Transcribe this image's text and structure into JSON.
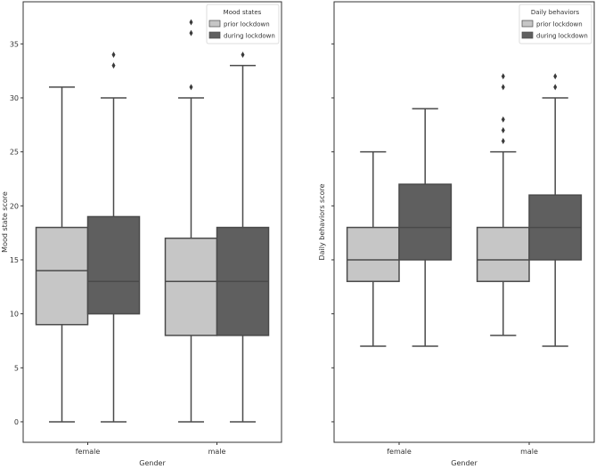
{
  "colors": {
    "prior": "#c6c6c6",
    "during": "#5f5f5f",
    "line": "#4a4a4a"
  },
  "chart_data": [
    {
      "type": "box",
      "title": "",
      "xlabel": "Gender",
      "ylabel": "Mood state score",
      "ylim": [
        -1.9,
        38.9
      ],
      "yticks": [
        0,
        5,
        10,
        15,
        20,
        25,
        30,
        35
      ],
      "show_ytick_labels": true,
      "categories": [
        "female",
        "male"
      ],
      "legend": {
        "title": "Mood states",
        "placement": "top-right",
        "entries": [
          "prior lockdown",
          "during lockdown"
        ]
      },
      "series": [
        {
          "name": "prior lockdown",
          "boxes": [
            {
              "whislo": 0,
              "q1": 9,
              "med": 14,
              "q3": 18,
              "whishi": 31,
              "fliers": []
            },
            {
              "whislo": 0,
              "q1": 8,
              "med": 13,
              "q3": 17,
              "whishi": 30,
              "fliers": [
                31,
                36,
                37
              ]
            }
          ]
        },
        {
          "name": "during lockdown",
          "boxes": [
            {
              "whislo": 0,
              "q1": 10,
              "med": 13,
              "q3": 19,
              "whishi": 30,
              "fliers": [
                33,
                34
              ]
            },
            {
              "whislo": 0,
              "q1": 8,
              "med": 13,
              "q3": 18,
              "whishi": 33,
              "fliers": [
                34
              ]
            }
          ]
        }
      ]
    },
    {
      "type": "box",
      "title": "",
      "xlabel": "Gender",
      "ylabel": "Daily behaviors score",
      "ylim": [
        -1.9,
        38.9
      ],
      "yticks": [
        0,
        5,
        10,
        15,
        20,
        25,
        30,
        35
      ],
      "show_ytick_labels": false,
      "categories": [
        "female",
        "male"
      ],
      "legend": {
        "title": "Daily behaviors",
        "placement": "top-right",
        "entries": [
          "prior lockdown",
          "during lockdown"
        ]
      },
      "series": [
        {
          "name": "prior lockdown",
          "boxes": [
            {
              "whislo": 7,
              "q1": 13,
              "med": 15,
              "q3": 18,
              "whishi": 25,
              "fliers": []
            },
            {
              "whislo": 8,
              "q1": 13,
              "med": 15,
              "q3": 18,
              "whishi": 25,
              "fliers": [
                26,
                27,
                28,
                31,
                32
              ]
            }
          ]
        },
        {
          "name": "during lockdown",
          "boxes": [
            {
              "whislo": 7,
              "q1": 15,
              "med": 18,
              "q3": 22,
              "whishi": 29,
              "fliers": []
            },
            {
              "whislo": 7,
              "q1": 15,
              "med": 18,
              "q3": 21,
              "whishi": 30,
              "fliers": [
                31,
                32
              ]
            }
          ]
        }
      ]
    }
  ]
}
